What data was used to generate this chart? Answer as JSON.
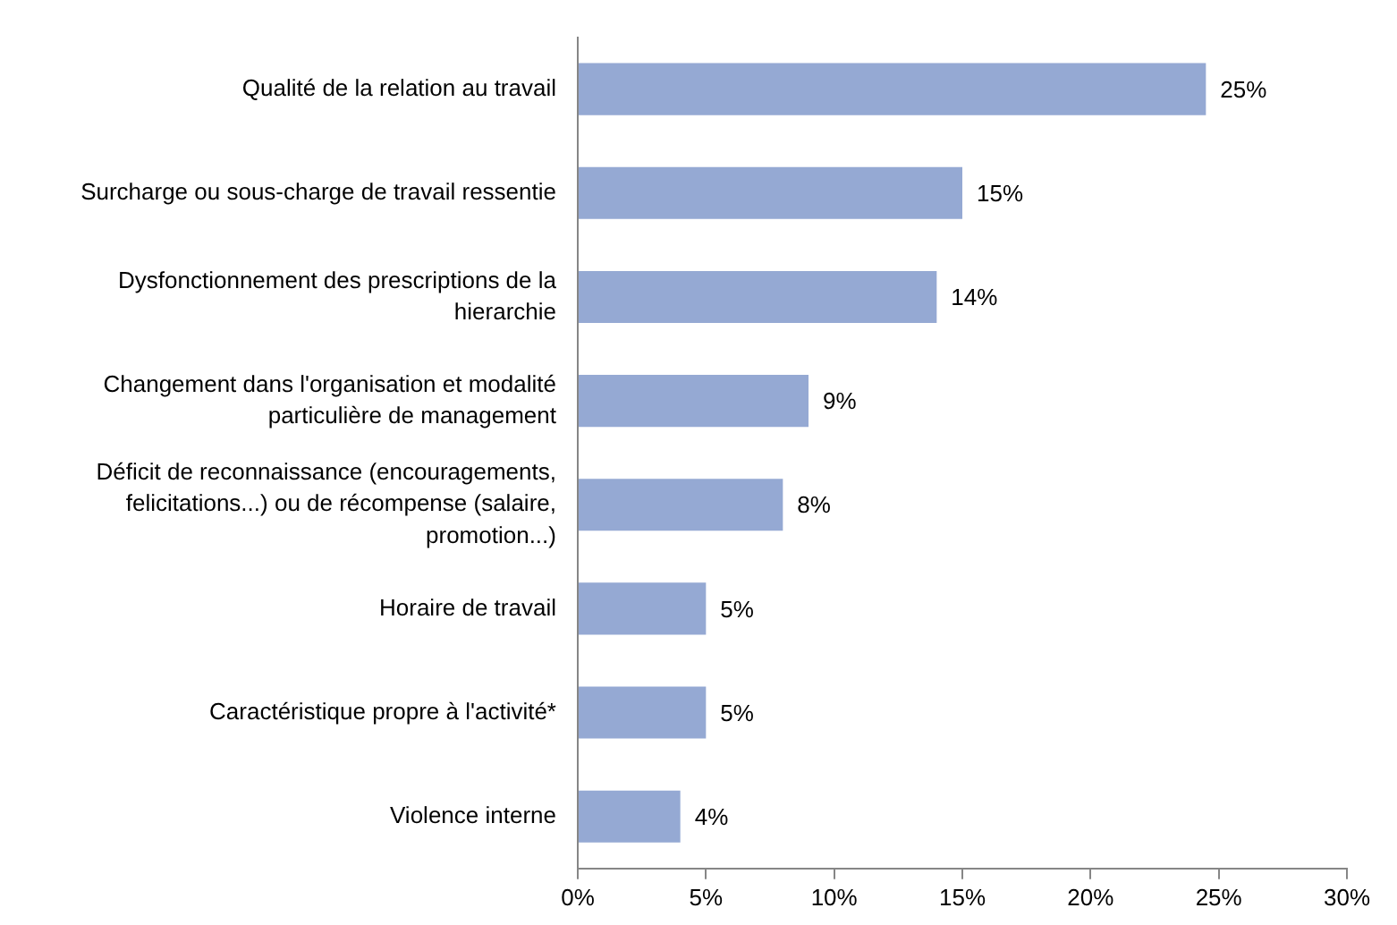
{
  "chart_data": {
    "type": "bar",
    "orientation": "horizontal",
    "categories": [
      "Qualité de la relation au travail",
      "Surcharge ou sous-charge de travail ressentie",
      "Dysfonctionnement des prescriptions de la hierarchie",
      "Changement dans l'organisation et modalité particulière de management",
      "Déficit de reconnaissance (encouragements, felicitations...) ou de récompense (salaire, promotion...)",
      "Horaire de travail",
      "Caractéristique propre à l'activité*",
      "Violence interne"
    ],
    "values": [
      24.5,
      15,
      14,
      9,
      8,
      5,
      5,
      4
    ],
    "value_labels": [
      "25%",
      "15%",
      "14%",
      "9%",
      "8%",
      "5%",
      "5%",
      "4%"
    ],
    "color": "#95a9d3",
    "xlim": [
      0,
      30
    ],
    "xticks": [
      {
        "value": 0,
        "label": "0%"
      },
      {
        "value": 5,
        "label": "5%"
      },
      {
        "value": 10,
        "label": "10%"
      },
      {
        "value": 15,
        "label": "15%"
      },
      {
        "value": 20,
        "label": "20%"
      },
      {
        "value": 25,
        "label": "25%"
      },
      {
        "value": 30,
        "label": "30%"
      }
    ],
    "grid": false,
    "legend": false
  }
}
